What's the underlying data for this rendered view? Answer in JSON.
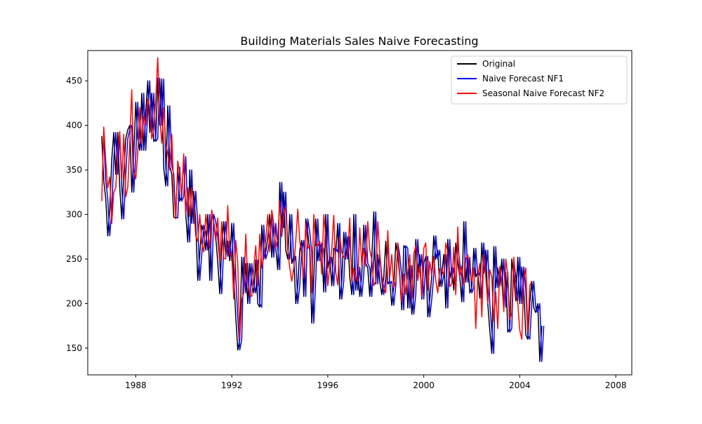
{
  "chart_data": {
    "type": "line",
    "title": "Building Materials Sales Naive Forecasting",
    "xlabel": "",
    "ylabel": "",
    "x_start": "1986-08",
    "x_end": "2008-09",
    "xlim": [
      "1986-01",
      "2008-09"
    ],
    "ylim": [
      120,
      484
    ],
    "x_ticks": [
      "1988",
      "1992",
      "1996",
      "2000",
      "2004",
      "2008"
    ],
    "y_ticks": [
      150,
      200,
      250,
      300,
      350,
      400,
      450
    ],
    "grid": false,
    "legend": "top-right",
    "series": [
      {
        "name": "Original",
        "color": "#000000",
        "x_start": "1986-08",
        "values": [
          388,
          338,
          318,
          276,
          305,
          362,
          392,
          345,
          392,
          330,
          295,
          345,
          385,
          395,
          400,
          325,
          365,
          426,
          385,
          372,
          436,
          372,
          415,
          450,
          392,
          436,
          382,
          385,
          453,
          400,
          452,
          352,
          332,
          422,
          355,
          345,
          297,
          296,
          353,
          315,
          320,
          365,
          300,
          269,
          350,
          290,
          326,
          290,
          226,
          255,
          288,
          280,
          260,
          300,
          226,
          300,
          292,
          275,
          246,
          211,
          265,
          292,
          253,
          270,
          248,
          290,
          230,
          185,
          148,
          160,
          252,
          212,
          245,
          200,
          245,
          222,
          212,
          249,
          200,
          196,
          288,
          250,
          258,
          274,
          300,
          252,
          290,
          262,
          238,
          336,
          285,
          325,
          260,
          250,
          300,
          245,
          253,
          200,
          220,
          260,
          271,
          208,
          295,
          280,
          258,
          178,
          228,
          295,
          248,
          268,
          260,
          213,
          300,
          240,
          252,
          220,
          262,
          258,
          290,
          205,
          225,
          280,
          250,
          275,
          230,
          210,
          300,
          215,
          241,
          208,
          232,
          288,
          245,
          240,
          208,
          250,
          303,
          222,
          255,
          225,
          210,
          230,
          270,
          222,
          225,
          198,
          220,
          268,
          254,
          230,
          193,
          265,
          262,
          195,
          243,
          188,
          210,
          272,
          235,
          255,
          205,
          245,
          253,
          185,
          205,
          232,
          276,
          250,
          260,
          219,
          232,
          255,
          195,
          272,
          228,
          240,
          215,
          268,
          246,
          230,
          202,
          292,
          224,
          252,
          212,
          218,
          262,
          230,
          235,
          206,
          268,
          234,
          260,
          200,
          170,
          144,
          264,
          218,
          240,
          220,
          250,
          196,
          235,
          168,
          172,
          250,
          230,
          203,
          252,
          200,
          241,
          215,
          165,
          160,
          200,
          225,
          195,
          190,
          200,
          135,
          175
        ]
      },
      {
        "name": "Naive Forecast NF1",
        "color": "#0000ff",
        "x_start": "1986-09",
        "values": [
          388,
          338,
          318,
          276,
          305,
          362,
          392,
          345,
          392,
          330,
          295,
          345,
          385,
          395,
          400,
          325,
          365,
          426,
          385,
          372,
          436,
          372,
          415,
          450,
          392,
          436,
          382,
          385,
          453,
          400,
          452,
          352,
          332,
          422,
          355,
          345,
          297,
          296,
          353,
          315,
          320,
          365,
          300,
          269,
          350,
          290,
          326,
          290,
          226,
          255,
          288,
          280,
          260,
          300,
          226,
          300,
          292,
          275,
          246,
          211,
          265,
          292,
          253,
          270,
          248,
          290,
          230,
          185,
          148,
          160,
          252,
          212,
          245,
          200,
          245,
          222,
          212,
          249,
          200,
          196,
          288,
          250,
          258,
          274,
          300,
          252,
          290,
          262,
          238,
          336,
          285,
          325,
          260,
          250,
          300,
          245,
          253,
          200,
          220,
          260,
          271,
          208,
          295,
          280,
          258,
          178,
          228,
          295,
          248,
          268,
          260,
          213,
          300,
          240,
          252,
          220,
          262,
          258,
          290,
          205,
          225,
          280,
          250,
          275,
          230,
          210,
          300,
          215,
          241,
          208,
          232,
          288,
          245,
          240,
          208,
          250,
          303,
          222,
          255,
          225,
          210,
          230,
          270,
          222,
          225,
          198,
          220,
          268,
          254,
          230,
          193,
          265,
          262,
          195,
          243,
          188,
          210,
          272,
          235,
          255,
          205,
          245,
          253,
          185,
          205,
          232,
          276,
          250,
          260,
          219,
          232,
          255,
          195,
          272,
          228,
          240,
          215,
          268,
          246,
          230,
          202,
          292,
          224,
          252,
          212,
          218,
          262,
          230,
          235,
          206,
          268,
          234,
          260,
          200,
          170,
          144,
          264,
          218,
          240,
          220,
          250,
          196,
          235,
          168,
          172,
          250,
          230,
          203,
          252,
          200,
          241,
          215,
          165,
          160,
          200,
          225,
          195,
          190,
          200,
          135,
          175
        ]
      },
      {
        "name": "Seasonal Naive Forecast NF2",
        "color": "#ff0000",
        "x_start": "1986-08",
        "values": [
          315,
          398,
          360,
          330,
          342,
          290,
          325,
          330,
          370,
          393,
          340,
          390,
          320,
          330,
          380,
          440,
          350,
          340,
          368,
          420,
          380,
          410,
          400,
          430,
          420,
          385,
          395,
          430,
          476,
          410,
          380,
          420,
          380,
          368,
          350,
          390,
          330,
          295,
          360,
          348,
          322,
          368,
          300,
          330,
          298,
          330,
          310,
          276,
          270,
          300,
          268,
          258,
          300,
          280,
          262,
          305,
          290,
          270,
          296,
          248,
          292,
          251,
          250,
          310,
          255,
          256,
          205,
          271,
          245,
          160,
          205,
          212,
          278,
          225,
          210,
          208,
          240,
          265,
          220,
          278,
          240,
          253,
          272,
          300,
          258,
          305,
          290,
          262,
          275,
          315,
          275,
          300,
          308,
          260,
          240,
          225,
          240,
          270,
          306,
          270,
          255,
          228,
          290,
          262,
          265,
          212,
          300,
          265,
          265,
          270,
          233,
          300,
          275,
          220,
          242,
          261,
          299,
          235,
          221,
          275,
          258,
          252,
          252,
          258,
          296,
          225,
          240,
          228,
          225,
          285,
          243,
          262,
          242,
          292,
          260,
          250,
          220,
          225,
          292,
          256,
          232,
          218,
          212,
          282,
          230,
          255,
          218,
          225,
          268,
          232,
          202,
          233,
          210,
          235,
          255,
          205,
          256,
          265,
          226,
          242,
          208,
          262,
          268,
          215,
          247,
          232,
          253,
          226,
          212,
          239,
          238,
          232,
          268,
          258,
          219,
          222,
          263,
          210,
          286,
          230,
          242,
          221,
          250,
          255,
          235,
          225,
          240,
          172,
          230,
          245,
          185,
          255,
          230,
          200,
          238,
          230,
          180,
          213,
          172,
          242,
          225,
          191,
          250,
          232,
          182,
          190,
          252,
          210,
          200,
          170,
          160,
          227,
          240,
          168,
          220,
          225
        ]
      }
    ]
  }
}
